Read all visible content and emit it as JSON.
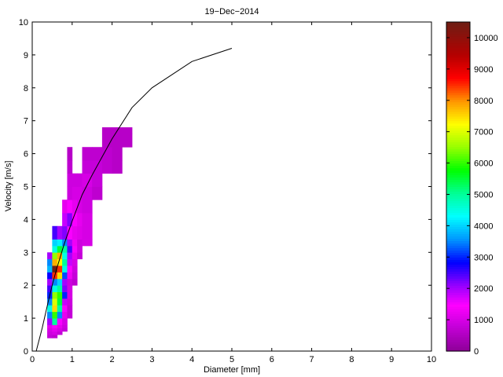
{
  "chart_data": {
    "type": "heatmap",
    "title": "19−Dec−2014",
    "xlabel": "Diameter [mm]",
    "ylabel": "Velocity [m/s]",
    "xlim": [
      0,
      10
    ],
    "ylim": [
      0,
      10
    ],
    "xticks": [
      "0",
      "1",
      "2",
      "3",
      "4",
      "5",
      "6",
      "7",
      "8",
      "9",
      "10"
    ],
    "yticks": [
      "0",
      "1",
      "2",
      "3",
      "4",
      "5",
      "6",
      "7",
      "8",
      "9",
      "10"
    ],
    "colorbar": {
      "min": 0,
      "max": 10500,
      "ticks": [
        "0",
        "1000",
        "2000",
        "3000",
        "4000",
        "5000",
        "6000",
        "7000",
        "8000",
        "9000",
        "10000"
      ],
      "tick_values": [
        0,
        1000,
        2000,
        3000,
        4000,
        5000,
        6000,
        7000,
        8000,
        9000,
        10000
      ]
    },
    "diameter_bins": [
      [
        0.375,
        0.5
      ],
      [
        0.5,
        0.625
      ],
      [
        0.625,
        0.75
      ],
      [
        0.75,
        0.875
      ],
      [
        0.875,
        1.0
      ],
      [
        1.0,
        1.125
      ],
      [
        1.125,
        1.25
      ],
      [
        1.25,
        1.5
      ],
      [
        1.5,
        1.75
      ],
      [
        1.75,
        2.0
      ],
      [
        2.0,
        2.25
      ],
      [
        2.25,
        2.5
      ]
    ],
    "velocity_bins": [
      [
        0.4,
        0.5
      ],
      [
        0.5,
        0.6
      ],
      [
        0.6,
        0.7
      ],
      [
        0.7,
        0.8
      ],
      [
        0.8,
        1.0
      ],
      [
        1.0,
        1.2
      ],
      [
        1.2,
        1.4
      ],
      [
        1.4,
        1.6
      ],
      [
        1.6,
        1.8
      ],
      [
        1.8,
        2.0
      ],
      [
        2.0,
        2.2
      ],
      [
        2.2,
        2.4
      ],
      [
        2.4,
        2.6
      ],
      [
        2.6,
        2.8
      ],
      [
        2.8,
        3.0
      ],
      [
        3.0,
        3.2
      ],
      [
        3.2,
        3.4
      ],
      [
        3.4,
        3.8
      ],
      [
        3.8,
        4.2
      ],
      [
        4.2,
        4.6
      ],
      [
        4.6,
        5.0
      ],
      [
        5.0,
        5.4
      ],
      [
        5.4,
        5.8
      ],
      [
        5.8,
        6.2
      ],
      [
        6.2,
        6.6
      ],
      [
        6.6,
        6.8
      ]
    ],
    "cells": [
      {
        "d": 0,
        "v": 0,
        "count": 800
      },
      {
        "d": 1,
        "v": 0,
        "count": 700
      },
      {
        "d": 0,
        "v": 1,
        "count": 900
      },
      {
        "d": 1,
        "v": 1,
        "count": 1000
      },
      {
        "d": 2,
        "v": 1,
        "count": 800
      },
      {
        "d": 0,
        "v": 2,
        "count": 1000
      },
      {
        "d": 1,
        "v": 2,
        "count": 1200
      },
      {
        "d": 2,
        "v": 2,
        "count": 1000
      },
      {
        "d": 3,
        "v": 2,
        "count": 800
      },
      {
        "d": 0,
        "v": 3,
        "count": 1200
      },
      {
        "d": 1,
        "v": 3,
        "count": 1500
      },
      {
        "d": 2,
        "v": 3,
        "count": 1200
      },
      {
        "d": 3,
        "v": 3,
        "count": 900
      },
      {
        "d": 0,
        "v": 4,
        "count": 2000
      },
      {
        "d": 1,
        "v": 4,
        "count": 5000
      },
      {
        "d": 2,
        "v": 4,
        "count": 1500
      },
      {
        "d": 3,
        "v": 4,
        "count": 1000
      },
      {
        "d": 0,
        "v": 5,
        "count": 3500
      },
      {
        "d": 1,
        "v": 5,
        "count": 6000
      },
      {
        "d": 2,
        "v": 5,
        "count": 3500
      },
      {
        "d": 3,
        "v": 5,
        "count": 1200
      },
      {
        "d": 4,
        "v": 5,
        "count": 800
      },
      {
        "d": 0,
        "v": 6,
        "count": 4500
      },
      {
        "d": 1,
        "v": 6,
        "count": 7500
      },
      {
        "d": 2,
        "v": 6,
        "count": 5000
      },
      {
        "d": 3,
        "v": 6,
        "count": 1500
      },
      {
        "d": 4,
        "v": 6,
        "count": 800
      },
      {
        "d": 0,
        "v": 7,
        "count": 3500
      },
      {
        "d": 1,
        "v": 7,
        "count": 7000
      },
      {
        "d": 2,
        "v": 7,
        "count": 5500
      },
      {
        "d": 3,
        "v": 7,
        "count": 1800
      },
      {
        "d": 4,
        "v": 7,
        "count": 900
      },
      {
        "d": 0,
        "v": 8,
        "count": 3000
      },
      {
        "d": 1,
        "v": 8,
        "count": 6500
      },
      {
        "d": 2,
        "v": 8,
        "count": 6000
      },
      {
        "d": 3,
        "v": 8,
        "count": 3000
      },
      {
        "d": 4,
        "v": 8,
        "count": 1000
      },
      {
        "d": 0,
        "v": 9,
        "count": 2500
      },
      {
        "d": 1,
        "v": 9,
        "count": 4500
      },
      {
        "d": 2,
        "v": 9,
        "count": 5000
      },
      {
        "d": 3,
        "v": 9,
        "count": 2200
      },
      {
        "d": 4,
        "v": 9,
        "count": 1000
      },
      {
        "d": 0,
        "v": 10,
        "count": 2000
      },
      {
        "d": 1,
        "v": 10,
        "count": 3500
      },
      {
        "d": 2,
        "v": 10,
        "count": 4000
      },
      {
        "d": 3,
        "v": 10,
        "count": 2000
      },
      {
        "d": 4,
        "v": 10,
        "count": 900
      },
      {
        "d": 5,
        "v": 10,
        "count": 700
      },
      {
        "d": 0,
        "v": 11,
        "count": 2800
      },
      {
        "d": 1,
        "v": 11,
        "count": 8500
      },
      {
        "d": 2,
        "v": 11,
        "count": 7500
      },
      {
        "d": 3,
        "v": 11,
        "count": 3200
      },
      {
        "d": 4,
        "v": 11,
        "count": 1300
      },
      {
        "d": 5,
        "v": 11,
        "count": 800
      },
      {
        "d": 0,
        "v": 12,
        "count": 3800
      },
      {
        "d": 1,
        "v": 12,
        "count": 10500
      },
      {
        "d": 2,
        "v": 12,
        "count": 8500
      },
      {
        "d": 3,
        "v": 12,
        "count": 4500
      },
      {
        "d": 4,
        "v": 12,
        "count": 1500
      },
      {
        "d": 5,
        "v": 12,
        "count": 900
      },
      {
        "d": 0,
        "v": 13,
        "count": 3500
      },
      {
        "d": 1,
        "v": 13,
        "count": 7800
      },
      {
        "d": 2,
        "v": 13,
        "count": 7200
      },
      {
        "d": 3,
        "v": 13,
        "count": 5000
      },
      {
        "d": 4,
        "v": 13,
        "count": 1800
      },
      {
        "d": 5,
        "v": 13,
        "count": 1000
      },
      {
        "d": 0,
        "v": 14,
        "count": 2000
      },
      {
        "d": 1,
        "v": 14,
        "count": 6500
      },
      {
        "d": 2,
        "v": 14,
        "count": 7800
      },
      {
        "d": 3,
        "v": 14,
        "count": 4500
      },
      {
        "d": 4,
        "v": 14,
        "count": 2000
      },
      {
        "d": 5,
        "v": 14,
        "count": 1200
      },
      {
        "d": 6,
        "v": 14,
        "count": 800
      },
      {
        "d": 1,
        "v": 15,
        "count": 4500
      },
      {
        "d": 2,
        "v": 15,
        "count": 5500
      },
      {
        "d": 3,
        "v": 15,
        "count": 5000
      },
      {
        "d": 4,
        "v": 15,
        "count": 2500
      },
      {
        "d": 5,
        "v": 15,
        "count": 1500
      },
      {
        "d": 6,
        "v": 15,
        "count": 900
      },
      {
        "d": 1,
        "v": 16,
        "count": 4000
      },
      {
        "d": 2,
        "v": 16,
        "count": 4200
      },
      {
        "d": 3,
        "v": 16,
        "count": 3500
      },
      {
        "d": 4,
        "v": 16,
        "count": 2000
      },
      {
        "d": 5,
        "v": 16,
        "count": 1300
      },
      {
        "d": 6,
        "v": 16,
        "count": 900
      },
      {
        "d": 7,
        "v": 16,
        "count": 1000
      },
      {
        "d": 1,
        "v": 17,
        "count": 2500
      },
      {
        "d": 2,
        "v": 17,
        "count": 2000
      },
      {
        "d": 3,
        "v": 17,
        "count": 2200
      },
      {
        "d": 4,
        "v": 17,
        "count": 1500
      },
      {
        "d": 5,
        "v": 17,
        "count": 1200
      },
      {
        "d": 6,
        "v": 17,
        "count": 1100
      },
      {
        "d": 7,
        "v": 17,
        "count": 1000
      },
      {
        "d": 3,
        "v": 18,
        "count": 1800
      },
      {
        "d": 4,
        "v": 18,
        "count": 2200
      },
      {
        "d": 5,
        "v": 18,
        "count": 1500
      },
      {
        "d": 6,
        "v": 18,
        "count": 1200
      },
      {
        "d": 7,
        "v": 18,
        "count": 1000
      },
      {
        "d": 3,
        "v": 19,
        "count": 1200
      },
      {
        "d": 4,
        "v": 19,
        "count": 1500
      },
      {
        "d": 5,
        "v": 19,
        "count": 1200
      },
      {
        "d": 6,
        "v": 19,
        "count": 1000
      },
      {
        "d": 7,
        "v": 19,
        "count": 900
      },
      {
        "d": 4,
        "v": 20,
        "count": 900
      },
      {
        "d": 5,
        "v": 20,
        "count": 1000
      },
      {
        "d": 6,
        "v": 20,
        "count": 1000
      },
      {
        "d": 7,
        "v": 20,
        "count": 900
      },
      {
        "d": 8,
        "v": 20,
        "count": 700
      },
      {
        "d": 4,
        "v": 21,
        "count": 900
      },
      {
        "d": 5,
        "v": 21,
        "count": 900
      },
      {
        "d": 6,
        "v": 21,
        "count": 900
      },
      {
        "d": 7,
        "v": 21,
        "count": 1000
      },
      {
        "d": 8,
        "v": 21,
        "count": 800
      },
      {
        "d": 4,
        "v": 22,
        "count": 700
      },
      {
        "d": 7,
        "v": 22,
        "count": 800
      },
      {
        "d": 8,
        "v": 22,
        "count": 800
      },
      {
        "d": 9,
        "v": 22,
        "count": 700
      },
      {
        "d": 10,
        "v": 22,
        "count": 600
      },
      {
        "d": 4,
        "v": 23,
        "count": 600
      },
      {
        "d": 7,
        "v": 23,
        "count": 700
      },
      {
        "d": 8,
        "v": 23,
        "count": 700
      },
      {
        "d": 9,
        "v": 23,
        "count": 700
      },
      {
        "d": 10,
        "v": 23,
        "count": 600
      },
      {
        "d": 9,
        "v": 24,
        "count": 600
      },
      {
        "d": 10,
        "v": 24,
        "count": 600
      },
      {
        "d": 11,
        "v": 24,
        "count": 600
      },
      {
        "d": 9,
        "v": 25,
        "count": 600
      },
      {
        "d": 10,
        "v": 25,
        "count": 600
      },
      {
        "d": 11,
        "v": 25,
        "count": 600
      }
    ],
    "fall_velocity_curve": {
      "x": [
        0.1,
        0.25,
        0.4,
        0.5,
        0.6,
        0.8,
        1.0,
        1.25,
        1.5,
        2.0,
        2.5,
        3.0,
        4.0,
        5.0
      ],
      "y": [
        0.0,
        0.7,
        1.5,
        2.0,
        2.45,
        3.25,
        3.95,
        4.75,
        5.35,
        6.45,
        7.4,
        8.0,
        8.8,
        9.2
      ]
    }
  }
}
